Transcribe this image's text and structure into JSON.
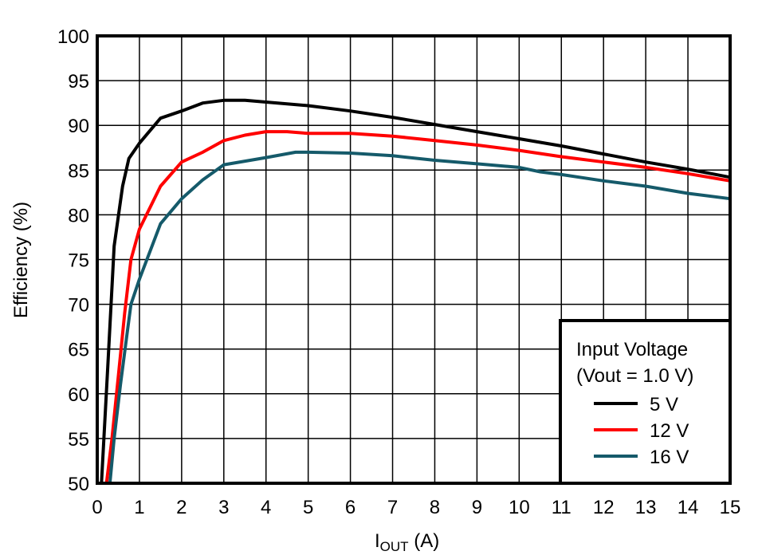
{
  "chart_data": {
    "type": "line",
    "title": "",
    "xlabel": "IOUT (A)",
    "xlabel_main": "I",
    "xlabel_sub": "OUT",
    "xlabel_unit": " (A)",
    "ylabel": "Efficiency (%)",
    "xlim": [
      0,
      15
    ],
    "ylim": [
      50,
      100
    ],
    "x_ticks": [
      "0",
      "1",
      "2",
      "3",
      "4",
      "5",
      "6",
      "7",
      "8",
      "9",
      "10",
      "11",
      "12",
      "13",
      "14",
      "15"
    ],
    "y_ticks": [
      "50",
      "55",
      "60",
      "65",
      "70",
      "75",
      "80",
      "85",
      "90",
      "95",
      "100"
    ],
    "grid": true,
    "legend": {
      "title_line1": "Input Voltage",
      "title_line2": "(Vout = 1.0 V)",
      "position": "lower right",
      "entries": [
        "5 V",
        "12 V",
        "16 V"
      ]
    },
    "series": [
      {
        "name": "5 V",
        "color": "#000000",
        "x": [
          0.1,
          0.25,
          0.4,
          0.6,
          0.75,
          1.0,
          1.5,
          2.0,
          2.5,
          3.0,
          3.5,
          4.0,
          5.0,
          6.0,
          7.0,
          8.0,
          9.0,
          10.0,
          11.0,
          12.0,
          13.0,
          14.0,
          15.0
        ],
        "y": [
          50.0,
          63.0,
          76.5,
          83.2,
          86.3,
          88.0,
          90.8,
          91.6,
          92.5,
          92.8,
          92.8,
          92.6,
          92.2,
          91.6,
          90.9,
          90.1,
          89.3,
          88.5,
          87.7,
          86.8,
          85.9,
          85.1,
          84.2
        ]
      },
      {
        "name": "12 V",
        "color": "#ff0000",
        "x": [
          0.22,
          0.35,
          0.5,
          0.65,
          0.8,
          1.0,
          1.5,
          2.0,
          2.5,
          3.0,
          3.5,
          4.0,
          4.5,
          5.0,
          6.0,
          7.0,
          8.0,
          9.0,
          10.0,
          11.0,
          12.0,
          13.0,
          14.0,
          15.0
        ],
        "y": [
          50.0,
          55.0,
          62.0,
          69.0,
          75.0,
          78.4,
          83.2,
          85.9,
          87.0,
          88.3,
          88.9,
          89.3,
          89.3,
          89.1,
          89.1,
          88.8,
          88.3,
          87.8,
          87.2,
          86.5,
          85.9,
          85.3,
          84.6,
          83.8
        ]
      },
      {
        "name": "16 V",
        "color": "#155a6a",
        "x": [
          0.3,
          0.4,
          0.55,
          0.7,
          0.8,
          1.0,
          1.5,
          2.0,
          2.5,
          3.0,
          3.5,
          4.0,
          4.7,
          5.0,
          6.0,
          7.0,
          8.0,
          9.0,
          10.0,
          10.5,
          11.0,
          12.0,
          13.0,
          14.0,
          15.0
        ],
        "y": [
          50.0,
          55.0,
          61.0,
          66.5,
          70.0,
          72.8,
          79.0,
          81.8,
          83.9,
          85.6,
          86.0,
          86.4,
          87.0,
          87.0,
          86.9,
          86.6,
          86.1,
          85.7,
          85.3,
          84.8,
          84.5,
          83.8,
          83.2,
          82.4,
          81.8
        ]
      }
    ]
  }
}
